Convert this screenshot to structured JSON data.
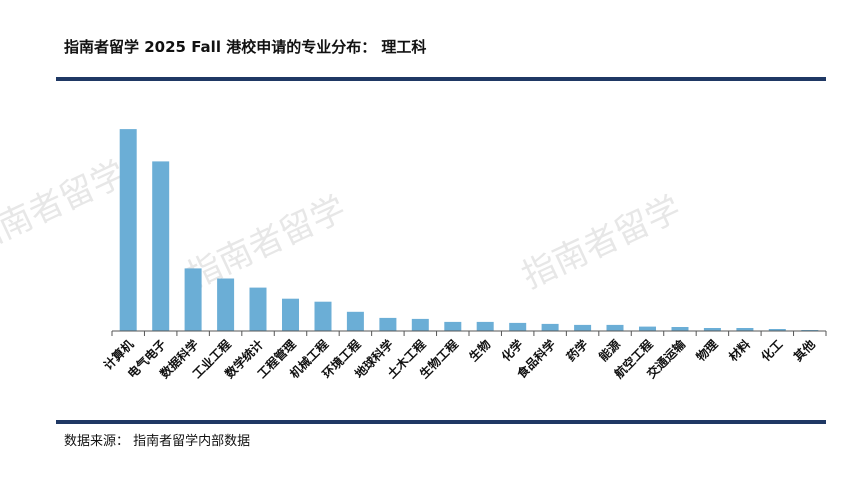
{
  "header": {
    "title": "指南者留学 2025 Fall 港校申请的专业分布： 理工科"
  },
  "footer": {
    "source": "数据来源： 指南者留学内部数据"
  },
  "watermark": {
    "text": "指南者留学"
  },
  "colors": {
    "bar": "#6baed6",
    "rule": "#1f3864",
    "axis": "#555555"
  },
  "chart_data": {
    "type": "bar",
    "title": "指南者留学 2025 Fall 港校申请的专业分布： 理工科",
    "xlabel": "",
    "ylabel": "",
    "categories": [
      "计算机",
      "电气电子",
      "数据科学",
      "工业工程",
      "数学统计",
      "工程管理",
      "机械工程",
      "环境工程",
      "地球科学",
      "土木工程",
      "生物工程",
      "生物",
      "化学",
      "食品科学",
      "药学",
      "能源",
      "航空工程",
      "交通运输",
      "物理",
      "材料",
      "化工",
      "其他"
    ],
    "values": [
      100,
      84,
      31,
      26,
      21.5,
      16,
      14.5,
      9.5,
      6.5,
      6,
      4.5,
      4.5,
      4,
      3.5,
      3,
      3,
      2.2,
      2,
      1.5,
      1.5,
      1,
      0.5
    ],
    "ylim": [
      0,
      105
    ],
    "grid": false,
    "legend": "none"
  }
}
